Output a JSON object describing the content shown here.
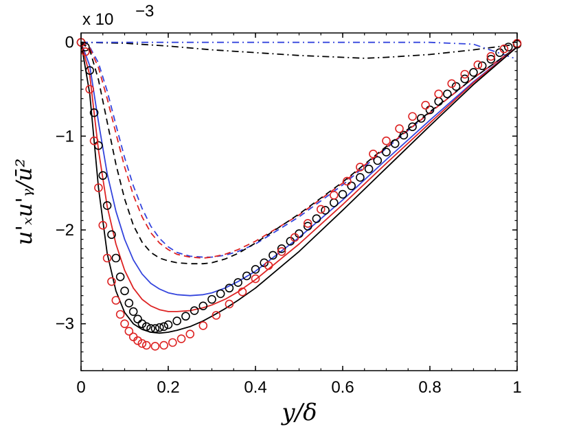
{
  "chart_data": {
    "type": "line",
    "title": "",
    "xlabel": "y/δ",
    "ylabel": "u'ₓu'ᵧ/ū²",
    "multiplier": "x 10",
    "multiplier_exponent": "−3",
    "xlim": [
      0,
      1
    ],
    "ylim": [
      -3.5,
      0.1
    ],
    "xticks": [
      0,
      0.2,
      0.4,
      0.6,
      0.8,
      1
    ],
    "xtick_labels": [
      "0",
      "0.2",
      "0.4",
      "0.6",
      "0.8",
      "1"
    ],
    "yticks": [
      0,
      -1,
      -2,
      -3
    ],
    "ytick_labels": [
      "0",
      "−1",
      "−2",
      "−3"
    ],
    "series": [
      {
        "name": "black-dashdot",
        "color": "#000000",
        "dash": "dashdot",
        "x": [
          0,
          0.1,
          0.2,
          0.3,
          0.4,
          0.5,
          0.6,
          0.65,
          0.7,
          0.8,
          0.9,
          1.0
        ],
        "y": [
          0,
          -0.01,
          -0.04,
          -0.08,
          -0.11,
          -0.14,
          -0.16,
          -0.17,
          -0.16,
          -0.13,
          -0.08,
          -0.02
        ]
      },
      {
        "name": "blue-dashdot",
        "color": "#3344dd",
        "dash": "dashdot",
        "x": [
          0,
          0.2,
          0.4,
          0.6,
          0.8,
          0.9,
          1.0
        ],
        "y": [
          0,
          0,
          0,
          0,
          0,
          -0.02,
          -0.18
        ]
      },
      {
        "name": "blue-dashed",
        "color": "#3344dd",
        "dash": "dashed",
        "x": [
          0,
          0.02,
          0.04,
          0.06,
          0.08,
          0.1,
          0.12,
          0.14,
          0.16,
          0.18,
          0.2,
          0.22,
          0.25,
          0.28,
          0.3,
          0.33,
          0.36,
          0.4,
          0.5,
          0.6,
          0.7,
          0.8,
          0.9,
          1.0
        ],
        "y": [
          0,
          -0.05,
          -0.22,
          -0.52,
          -0.88,
          -1.23,
          -1.53,
          -1.77,
          -1.96,
          -2.09,
          -2.18,
          -2.24,
          -2.28,
          -2.29,
          -2.29,
          -2.27,
          -2.23,
          -2.15,
          -1.86,
          -1.52,
          -1.13,
          -0.75,
          -0.38,
          -0.05
        ]
      },
      {
        "name": "red-dashed",
        "color": "#dd2222",
        "dash": "dashed",
        "x": [
          0,
          0.02,
          0.04,
          0.06,
          0.08,
          0.1,
          0.12,
          0.14,
          0.16,
          0.18,
          0.2,
          0.22,
          0.25,
          0.28,
          0.3,
          0.33,
          0.36,
          0.4,
          0.5,
          0.6,
          0.7,
          0.8,
          0.9,
          1.0
        ],
        "y": [
          0,
          -0.06,
          -0.27,
          -0.6,
          -0.97,
          -1.33,
          -1.63,
          -1.86,
          -2.03,
          -2.14,
          -2.21,
          -2.26,
          -2.29,
          -2.3,
          -2.29,
          -2.26,
          -2.21,
          -2.12,
          -1.84,
          -1.5,
          -1.12,
          -0.75,
          -0.38,
          -0.05
        ]
      },
      {
        "name": "black-dashed",
        "color": "#000000",
        "dash": "dashed",
        "x": [
          0,
          0.02,
          0.04,
          0.06,
          0.08,
          0.1,
          0.12,
          0.14,
          0.16,
          0.18,
          0.2,
          0.22,
          0.25,
          0.28,
          0.3,
          0.33,
          0.36,
          0.4,
          0.5,
          0.6,
          0.7,
          0.8,
          0.9,
          1.0
        ],
        "y": [
          0,
          -0.08,
          -0.4,
          -0.85,
          -1.3,
          -1.67,
          -1.95,
          -2.13,
          -2.24,
          -2.3,
          -2.33,
          -2.35,
          -2.36,
          -2.36,
          -2.35,
          -2.31,
          -2.25,
          -2.14,
          -1.83,
          -1.49,
          -1.11,
          -0.74,
          -0.38,
          -0.05
        ]
      },
      {
        "name": "blue-solid",
        "color": "#3344dd",
        "dash": "solid",
        "x": [
          0,
          0.02,
          0.04,
          0.06,
          0.08,
          0.1,
          0.12,
          0.14,
          0.16,
          0.18,
          0.2,
          0.22,
          0.25,
          0.28,
          0.3,
          0.33,
          0.36,
          0.4,
          0.5,
          0.6,
          0.7,
          0.8,
          0.9,
          1.0
        ],
        "y": [
          0,
          -0.25,
          -0.85,
          -1.4,
          -1.8,
          -2.1,
          -2.32,
          -2.47,
          -2.57,
          -2.63,
          -2.67,
          -2.69,
          -2.7,
          -2.69,
          -2.67,
          -2.62,
          -2.55,
          -2.44,
          -2.08,
          -1.68,
          -1.25,
          -0.83,
          -0.42,
          -0.05
        ]
      },
      {
        "name": "red-solid",
        "color": "#dd2222",
        "dash": "solid",
        "x": [
          0,
          0.02,
          0.04,
          0.06,
          0.08,
          0.1,
          0.12,
          0.14,
          0.16,
          0.18,
          0.2,
          0.22,
          0.25,
          0.28,
          0.3,
          0.33,
          0.36,
          0.4,
          0.5,
          0.6,
          0.7,
          0.8,
          0.9,
          1.0
        ],
        "y": [
          0,
          -0.35,
          -1.15,
          -1.75,
          -2.15,
          -2.43,
          -2.62,
          -2.74,
          -2.81,
          -2.85,
          -2.87,
          -2.87,
          -2.86,
          -2.83,
          -2.8,
          -2.74,
          -2.66,
          -2.53,
          -2.15,
          -1.73,
          -1.29,
          -0.86,
          -0.43,
          -0.05
        ]
      },
      {
        "name": "black-solid",
        "color": "#000000",
        "dash": "solid",
        "x": [
          0,
          0.02,
          0.04,
          0.06,
          0.08,
          0.1,
          0.12,
          0.14,
          0.16,
          0.18,
          0.2,
          0.22,
          0.25,
          0.28,
          0.3,
          0.33,
          0.36,
          0.4,
          0.5,
          0.6,
          0.7,
          0.8,
          0.9,
          1.0
        ],
        "y": [
          0,
          -0.55,
          -1.55,
          -2.25,
          -2.65,
          -2.88,
          -3.0,
          -3.06,
          -3.09,
          -3.1,
          -3.09,
          -3.07,
          -3.03,
          -2.97,
          -2.92,
          -2.84,
          -2.75,
          -2.62,
          -2.23,
          -1.79,
          -1.34,
          -0.89,
          -0.45,
          -0.05
        ]
      },
      {
        "name": "black-circles",
        "color": "#000000",
        "dash": "none",
        "marker": "circle",
        "x": [
          0.0,
          0.01,
          0.02,
          0.03,
          0.04,
          0.05,
          0.06,
          0.07,
          0.08,
          0.09,
          0.1,
          0.11,
          0.12,
          0.13,
          0.14,
          0.15,
          0.16,
          0.17,
          0.18,
          0.19,
          0.2,
          0.22,
          0.24,
          0.26,
          0.28,
          0.3,
          0.32,
          0.34,
          0.36,
          0.38,
          0.4,
          0.42,
          0.44,
          0.46,
          0.48,
          0.5,
          0.52,
          0.54,
          0.56,
          0.58,
          0.6,
          0.62,
          0.64,
          0.66,
          0.68,
          0.7,
          0.72,
          0.74,
          0.76,
          0.78,
          0.8,
          0.82,
          0.84,
          0.86,
          0.88,
          0.9,
          0.92,
          0.94,
          0.96,
          0.98,
          1.0
        ],
        "y": [
          0.0,
          -0.05,
          -0.3,
          -0.75,
          -1.1,
          -1.42,
          -1.74,
          -2.05,
          -2.3,
          -2.5,
          -2.65,
          -2.78,
          -2.87,
          -2.95,
          -3.0,
          -3.03,
          -3.05,
          -3.05,
          -3.04,
          -3.03,
          -3.01,
          -2.97,
          -2.92,
          -2.86,
          -2.81,
          -2.74,
          -2.68,
          -2.62,
          -2.56,
          -2.49,
          -2.42,
          -2.35,
          -2.27,
          -2.2,
          -2.12,
          -2.04,
          -1.96,
          -1.88,
          -1.79,
          -1.71,
          -1.62,
          -1.53,
          -1.44,
          -1.35,
          -1.26,
          -1.17,
          -1.08,
          -0.99,
          -0.9,
          -0.81,
          -0.72,
          -0.63,
          -0.55,
          -0.47,
          -0.39,
          -0.32,
          -0.25,
          -0.18,
          -0.11,
          -0.05,
          -0.02
        ]
      },
      {
        "name": "red-circles",
        "color": "#dd2222",
        "dash": "none",
        "marker": "circle",
        "x": [
          0.0,
          0.01,
          0.02,
          0.03,
          0.04,
          0.05,
          0.06,
          0.07,
          0.08,
          0.09,
          0.1,
          0.11,
          0.12,
          0.13,
          0.14,
          0.15,
          0.17,
          0.19,
          0.21,
          0.23,
          0.25,
          0.28,
          0.31,
          0.34,
          0.37,
          0.4,
          0.43,
          0.46,
          0.49,
          0.52,
          0.55,
          0.58,
          0.61,
          0.64,
          0.67,
          0.7,
          0.73,
          0.76,
          0.79,
          0.82,
          0.85,
          0.88,
          0.91,
          0.94,
          0.97,
          1.0
        ],
        "y": [
          0.0,
          -0.1,
          -0.5,
          -1.05,
          -1.55,
          -1.95,
          -2.3,
          -2.55,
          -2.75,
          -2.9,
          -3.0,
          -3.08,
          -3.14,
          -3.18,
          -3.21,
          -3.23,
          -3.24,
          -3.23,
          -3.2,
          -3.16,
          -3.11,
          -3.02,
          -2.91,
          -2.79,
          -2.66,
          -2.52,
          -2.38,
          -2.23,
          -2.08,
          -1.93,
          -1.78,
          -1.63,
          -1.48,
          -1.33,
          -1.19,
          -1.05,
          -0.92,
          -0.79,
          -0.67,
          -0.55,
          -0.44,
          -0.34,
          -0.24,
          -0.15,
          -0.07,
          -0.01
        ]
      }
    ]
  }
}
